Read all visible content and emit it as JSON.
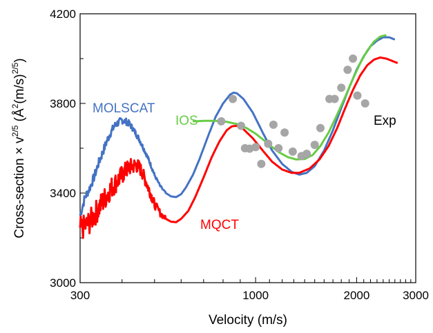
{
  "chart_data": {
    "type": "line",
    "title": "",
    "xlabel": "Velocity (m/s)",
    "ylabel_parts": {
      "base": "Cross-section × v",
      "exp1": "2/5",
      "mid": "  (Å",
      "exp2": "2",
      "mid2": "(m/s)",
      "exp3": "2/5",
      "end": ")"
    },
    "xscale": "log",
    "xlim": [
      300,
      3000
    ],
    "ylim": [
      3000,
      4200
    ],
    "x_ticks": [
      300,
      1000,
      2000,
      3000
    ],
    "x_tick_labels": [
      "300",
      "1000",
      "2000",
      "3000"
    ],
    "y_ticks": [
      3000,
      3400,
      3800,
      4200
    ],
    "y_tick_labels": [
      "3000",
      "3400",
      "3800",
      "4200"
    ],
    "grid": false,
    "series": [
      {
        "name": "MOLSCAT",
        "color": "#4472C4",
        "style": "oscillating",
        "points": [
          [
            300,
            3300
          ],
          [
            310,
            3380
          ],
          [
            320,
            3420
          ],
          [
            330,
            3470
          ],
          [
            340,
            3530
          ],
          [
            350,
            3580
          ],
          [
            360,
            3630
          ],
          [
            370,
            3670
          ],
          [
            380,
            3700
          ],
          [
            390,
            3715
          ],
          [
            400,
            3725
          ],
          [
            410,
            3720
          ],
          [
            420,
            3710
          ],
          [
            430,
            3690
          ],
          [
            440,
            3665
          ],
          [
            450,
            3640
          ],
          [
            460,
            3610
          ],
          [
            470,
            3580
          ],
          [
            480,
            3550
          ],
          [
            490,
            3515
          ],
          [
            500,
            3480
          ],
          [
            520,
            3430
          ],
          [
            540,
            3400
          ],
          [
            560,
            3385
          ],
          [
            580,
            3382
          ],
          [
            600,
            3395
          ],
          [
            620,
            3425
          ],
          [
            650,
            3480
          ],
          [
            680,
            3550
          ],
          [
            720,
            3650
          ],
          [
            760,
            3740
          ],
          [
            800,
            3800
          ],
          [
            840,
            3840
          ],
          [
            860,
            3848
          ],
          [
            880,
            3845
          ],
          [
            920,
            3820
          ],
          [
            980,
            3760
          ],
          [
            1050,
            3670
          ],
          [
            1120,
            3590
          ],
          [
            1200,
            3530
          ],
          [
            1280,
            3495
          ],
          [
            1350,
            3482
          ],
          [
            1420,
            3490
          ],
          [
            1500,
            3520
          ],
          [
            1600,
            3590
          ],
          [
            1700,
            3680
          ],
          [
            1800,
            3780
          ],
          [
            1900,
            3870
          ],
          [
            2000,
            3950
          ],
          [
            2100,
            4010
          ],
          [
            2200,
            4055
          ],
          [
            2300,
            4080
          ],
          [
            2400,
            4095
          ],
          [
            2500,
            4095
          ],
          [
            2600,
            4085
          ]
        ]
      },
      {
        "name": "MQCT",
        "color": "#FF0000",
        "style": "oscillating",
        "points": [
          [
            300,
            3240
          ],
          [
            310,
            3250
          ],
          [
            320,
            3270
          ],
          [
            330,
            3300
          ],
          [
            340,
            3330
          ],
          [
            350,
            3360
          ],
          [
            360,
            3390
          ],
          [
            370,
            3420
          ],
          [
            380,
            3440
          ],
          [
            390,
            3460
          ],
          [
            400,
            3480
          ],
          [
            410,
            3500
          ],
          [
            420,
            3515
          ],
          [
            430,
            3520
          ],
          [
            440,
            3525
          ],
          [
            450,
            3515
          ],
          [
            460,
            3490
          ],
          [
            470,
            3455
          ],
          [
            480,
            3420
          ],
          [
            490,
            3385
          ],
          [
            500,
            3350
          ],
          [
            520,
            3310
          ],
          [
            540,
            3285
          ],
          [
            560,
            3272
          ],
          [
            580,
            3270
          ],
          [
            600,
            3285
          ],
          [
            630,
            3320
          ],
          [
            660,
            3380
          ],
          [
            700,
            3470
          ],
          [
            740,
            3560
          ],
          [
            780,
            3630
          ],
          [
            820,
            3680
          ],
          [
            850,
            3698
          ],
          [
            880,
            3700
          ],
          [
            920,
            3685
          ],
          [
            980,
            3645
          ],
          [
            1050,
            3590
          ],
          [
            1120,
            3540
          ],
          [
            1200,
            3505
          ],
          [
            1280,
            3490
          ],
          [
            1350,
            3490
          ],
          [
            1450,
            3510
          ],
          [
            1550,
            3550
          ],
          [
            1650,
            3610
          ],
          [
            1750,
            3690
          ],
          [
            1850,
            3780
          ],
          [
            1950,
            3860
          ],
          [
            2050,
            3925
          ],
          [
            2150,
            3970
          ],
          [
            2250,
            3995
          ],
          [
            2350,
            4005
          ],
          [
            2450,
            4000
          ],
          [
            2550,
            3990
          ],
          [
            2650,
            3980
          ]
        ]
      },
      {
        "name": "IOS",
        "color": "#66CC44",
        "style": "smooth",
        "points": [
          [
            650,
            3720
          ],
          [
            700,
            3722
          ],
          [
            760,
            3722
          ],
          [
            820,
            3718
          ],
          [
            880,
            3708
          ],
          [
            940,
            3690
          ],
          [
            1000,
            3665
          ],
          [
            1060,
            3635
          ],
          [
            1120,
            3605
          ],
          [
            1180,
            3580
          ],
          [
            1250,
            3560
          ],
          [
            1320,
            3550
          ],
          [
            1400,
            3552
          ],
          [
            1480,
            3570
          ],
          [
            1560,
            3610
          ],
          [
            1650,
            3670
          ],
          [
            1750,
            3750
          ],
          [
            1850,
            3830
          ],
          [
            1950,
            3910
          ],
          [
            2050,
            3980
          ],
          [
            2150,
            4035
          ],
          [
            2250,
            4075
          ],
          [
            2350,
            4098
          ],
          [
            2450,
            4105
          ]
        ]
      },
      {
        "name": "Exp",
        "color": "#A6A6A6",
        "style": "markers",
        "points": [
          [
            790,
            3720
          ],
          [
            855,
            3820
          ],
          [
            905,
            3700
          ],
          [
            930,
            3600
          ],
          [
            960,
            3598
          ],
          [
            1000,
            3605
          ],
          [
            1040,
            3530
          ],
          [
            1090,
            3620
          ],
          [
            1130,
            3705
          ],
          [
            1170,
            3600
          ],
          [
            1220,
            3670
          ],
          [
            1290,
            3585
          ],
          [
            1370,
            3565
          ],
          [
            1420,
            3575
          ],
          [
            1500,
            3615
          ],
          [
            1560,
            3690
          ],
          [
            1660,
            3820
          ],
          [
            1720,
            3820
          ],
          [
            1800,
            3870
          ],
          [
            1880,
            3950
          ],
          [
            1950,
            4000
          ],
          [
            2010,
            3835
          ],
          [
            2120,
            3800
          ]
        ]
      }
    ],
    "annotations": [
      {
        "text": "MOLSCAT",
        "color": "#4472C4"
      },
      {
        "text": "MQCT",
        "color": "#FF0000"
      },
      {
        "text": "IOS",
        "color": "#66CC44"
      },
      {
        "text": "Exp",
        "color": "#000000"
      }
    ]
  }
}
